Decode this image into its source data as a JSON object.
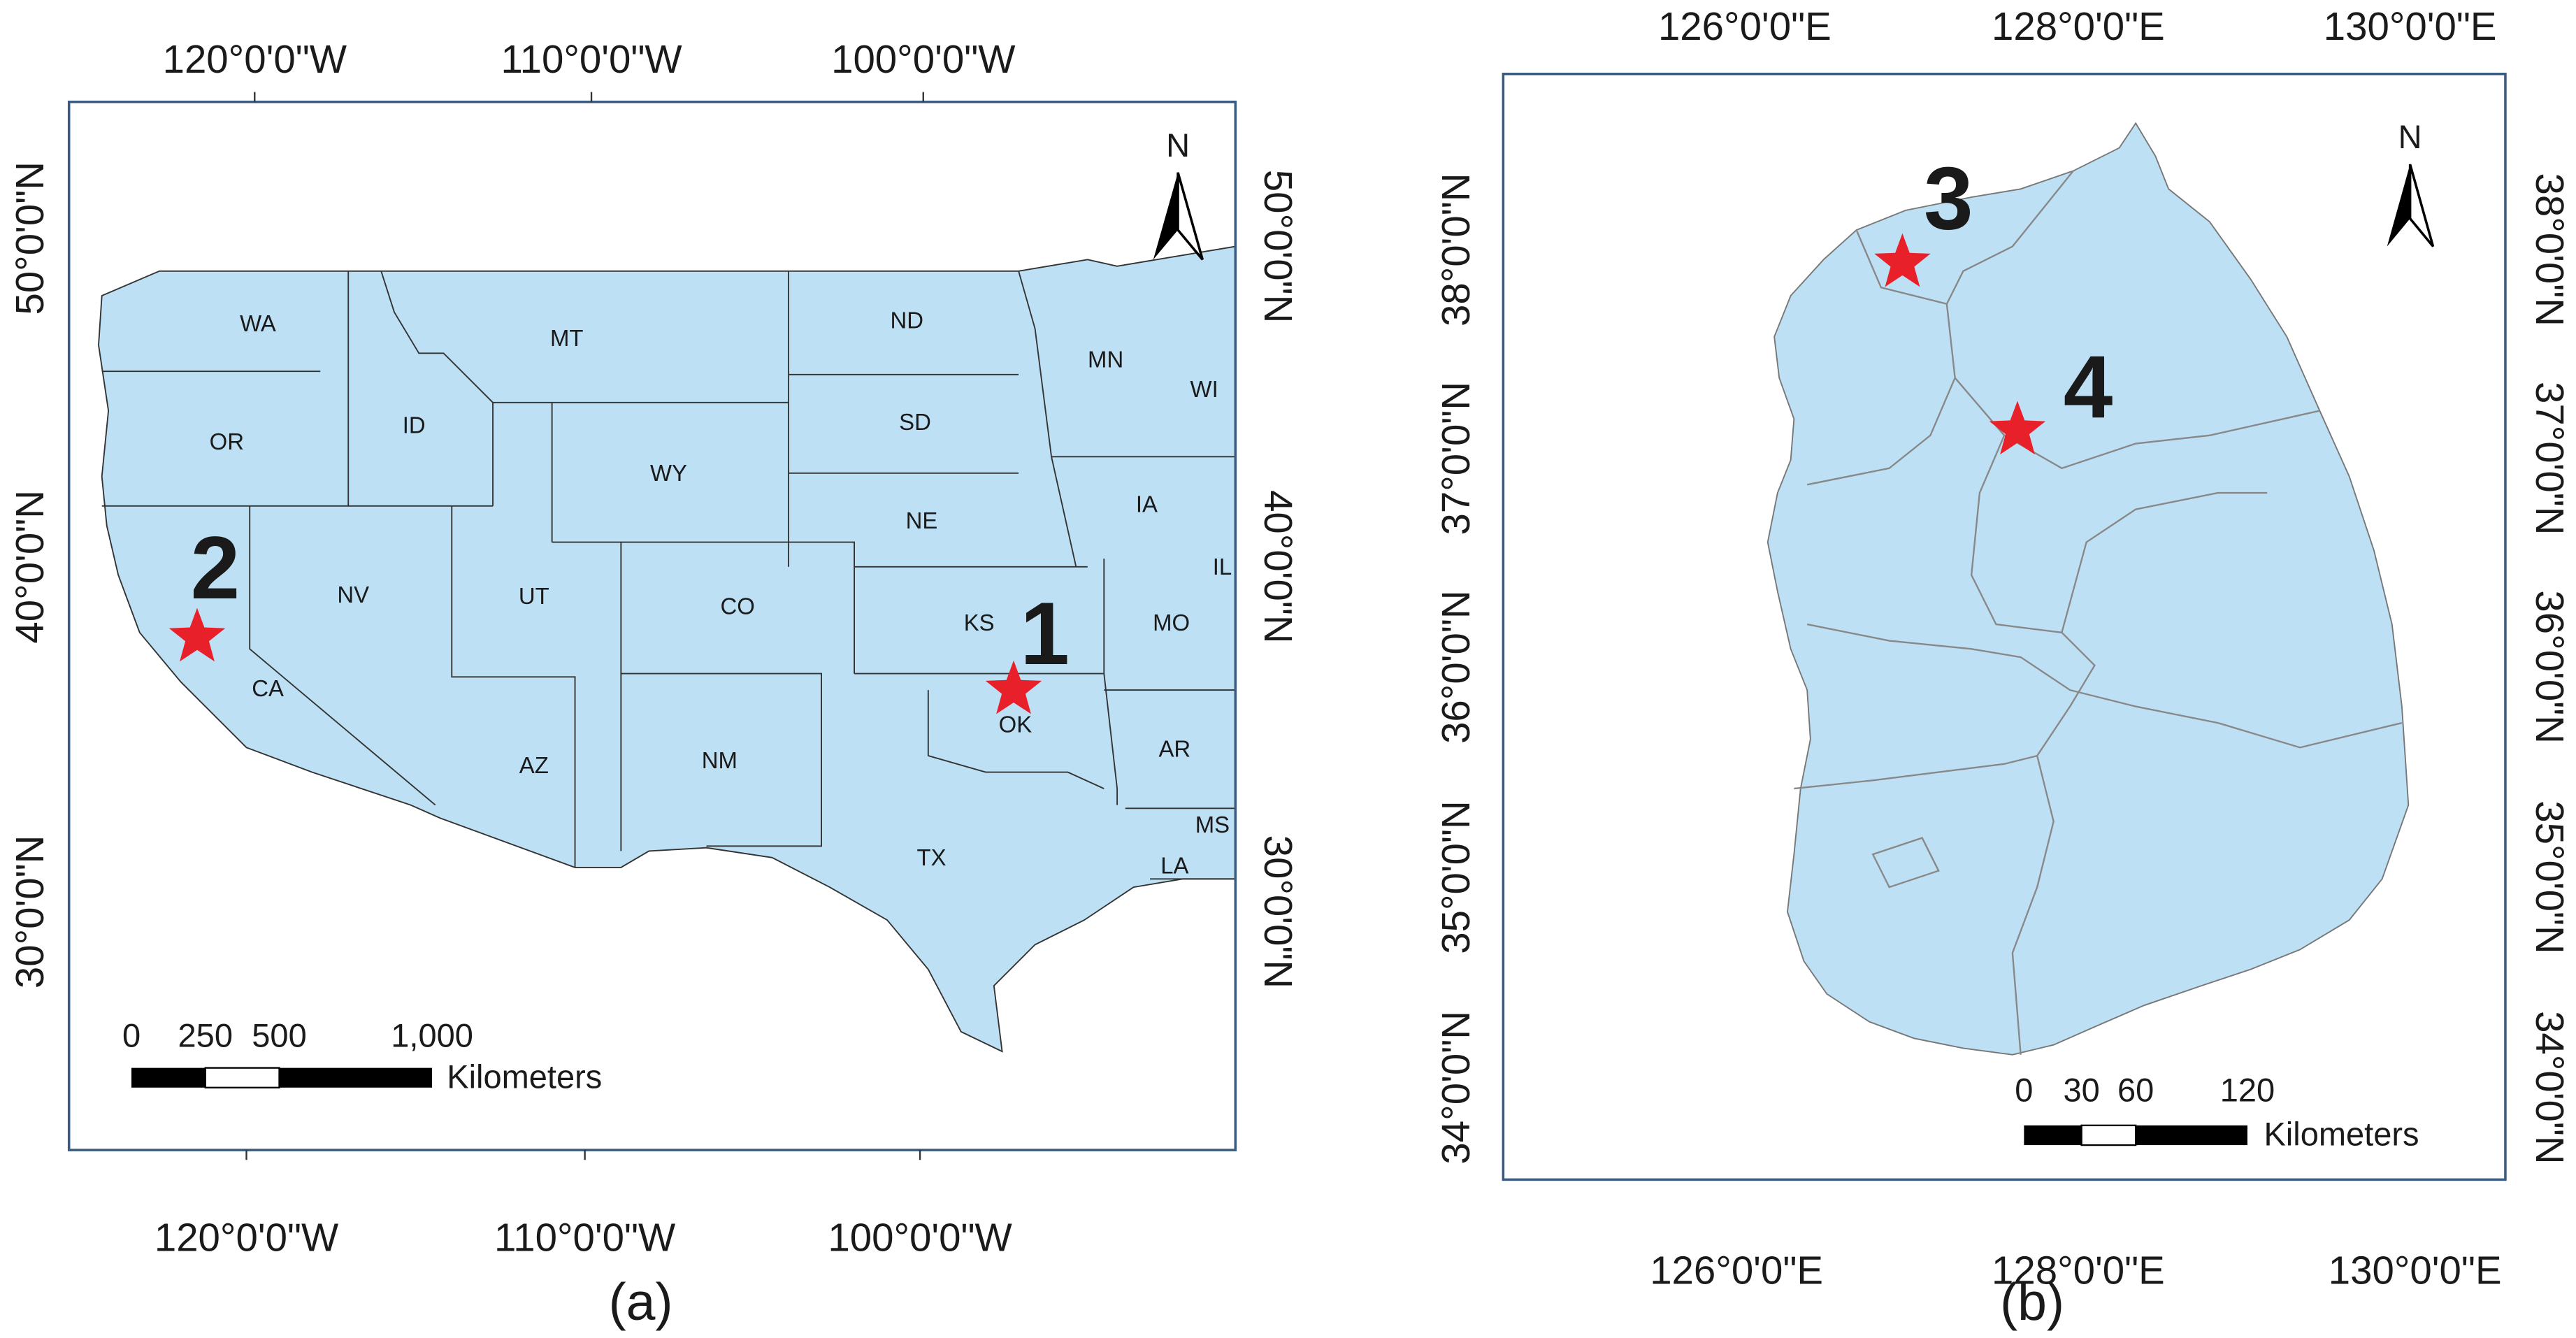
{
  "panels": [
    {
      "caption": "(a)",
      "top_labels": [
        "120°0'0\"W",
        "110°0'0\"W",
        "100°0'0\"W"
      ],
      "bottom_labels": [
        "120°0'0\"W",
        "110°0'0\"W",
        "100°0'0\"W"
      ],
      "left_labels": [
        "50°0'0\"N",
        "40°0'0\"N",
        "30°0'0\"N"
      ],
      "right_labels": [
        "50°0'0\"N",
        "40°0'0\"N",
        "30°0'0\"N"
      ],
      "north": "N",
      "scale_labels": [
        "0",
        "250",
        "500",
        "1,000"
      ],
      "scale_unit": "Kilometers",
      "states": [
        "WA",
        "OR",
        "CA",
        "ID",
        "NV",
        "MT",
        "WY",
        "UT",
        "AZ",
        "CO",
        "NM",
        "ND",
        "SD",
        "NE",
        "KS",
        "OK",
        "TX",
        "MN",
        "WI",
        "IA",
        "IL",
        "MO",
        "AR",
        "MS",
        "LA"
      ],
      "sites": [
        "1",
        "2"
      ]
    },
    {
      "caption": "(b)",
      "top_labels": [
        "126°0'0\"E",
        "128°0'0\"E",
        "130°0'0\"E"
      ],
      "bottom_labels": [
        "126°0'0\"E",
        "128°0'0\"E",
        "130°0'0\"E"
      ],
      "left_labels": [
        "38°0'0\"N",
        "37°0'0\"N",
        "36°0'0\"N",
        "35°0'0\"N",
        "34°0'0\"N"
      ],
      "right_labels": [
        "38°0'0\"N",
        "37°0'0\"N",
        "36°0'0\"N",
        "35°0'0\"N",
        "34°0'0\"N"
      ],
      "north": "N",
      "scale_labels": [
        "0",
        "30",
        "60",
        "120"
      ],
      "scale_unit": "Kilometers",
      "sites": [
        "3",
        "4"
      ]
    }
  ]
}
